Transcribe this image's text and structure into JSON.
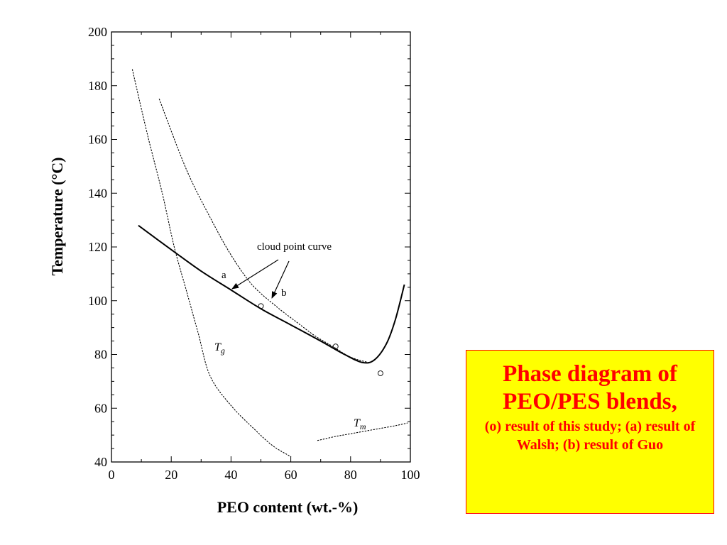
{
  "chart_data": {
    "type": "line",
    "title": "",
    "xlabel": "PEO content (wt.-%)",
    "ylabel": "Temperature (°C)",
    "xlim": [
      0,
      100
    ],
    "ylim": [
      40,
      200
    ],
    "x_ticks": [
      0,
      20,
      40,
      60,
      80,
      100
    ],
    "y_ticks": [
      40,
      60,
      80,
      100,
      120,
      140,
      160,
      180,
      200
    ],
    "grid": false,
    "series": [
      {
        "name": "a",
        "style": "solid",
        "x": [
          9,
          20,
          30,
          40,
          50,
          60,
          70,
          78,
          84,
          88,
          92,
          95,
          98
        ],
        "y": [
          128,
          119,
          111,
          104,
          97,
          91,
          85,
          80,
          77,
          78,
          84,
          93,
          106
        ]
      },
      {
        "name": "b",
        "style": "dotted",
        "x": [
          16,
          25,
          33,
          40,
          47,
          55,
          62,
          68,
          74,
          80,
          86
        ],
        "y": [
          175,
          149,
          131,
          117,
          106,
          98,
          92,
          87,
          83,
          79,
          77
        ]
      },
      {
        "name": "Tg",
        "style": "dotted",
        "x": [
          7,
          12,
          17,
          21,
          25,
          29,
          33,
          40,
          48,
          54,
          60
        ],
        "y": [
          186,
          162,
          140,
          120,
          104,
          88,
          72,
          61,
          52,
          46,
          42
        ]
      },
      {
        "name": "Tm",
        "style": "dotted",
        "x": [
          69,
          75,
          80,
          85,
          90,
          95,
          99
        ],
        "y": [
          48,
          49.5,
          50.5,
          51.5,
          52.5,
          53.5,
          54.5
        ]
      }
    ],
    "points": {
      "name": "o",
      "x": [
        50,
        75,
        90
      ],
      "y": [
        98,
        83,
        73
      ]
    },
    "annotations": {
      "cloud_point": "cloud point curve",
      "a": "a",
      "b": "b",
      "tg_base": "T",
      "tg_sub": "g",
      "tm_base": "T",
      "tm_sub": "m"
    }
  },
  "caption": {
    "title": "Phase diagram of PEO/PES blends,",
    "body": "(o) result of this study; (a) result of Walsh; (b) result of Guo",
    "color": "#ff0000",
    "background": "#ffff00"
  }
}
